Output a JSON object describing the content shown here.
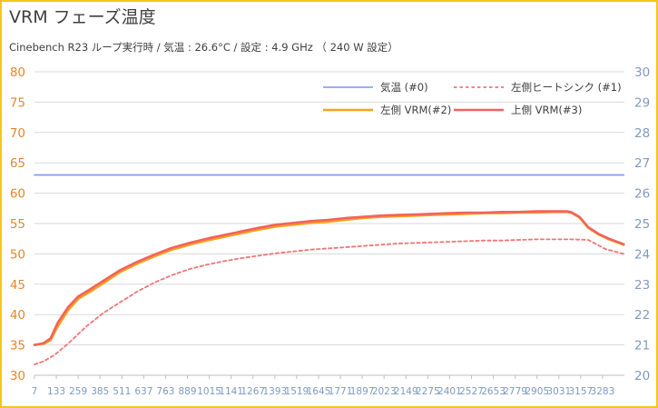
{
  "chart_data": {
    "type": "line",
    "title": "VRM フェーズ温度",
    "subtitle": "Cinebench R23 ループ実行時 / 気温 : 26.6°C / 設定 : 4.9 GHz （ 240 W 設定）",
    "xlabel": "",
    "ylabel": "",
    "y2label": "",
    "xlim": [
      7,
      3409
    ],
    "x_ticks": [
      7,
      133,
      259,
      385,
      511,
      637,
      763,
      889,
      1015,
      1141,
      1267,
      1393,
      1519,
      1645,
      1771,
      1897,
      2023,
      2149,
      2275,
      2401,
      2527,
      2653,
      2779,
      2905,
      3031,
      3157,
      3283
    ],
    "ylim": [
      30,
      80
    ],
    "y_ticks": [
      30,
      35,
      40,
      45,
      50,
      55,
      60,
      65,
      70,
      75,
      80
    ],
    "y2lim": [
      20,
      30
    ],
    "y2_ticks": [
      20,
      21,
      22,
      23,
      24,
      25,
      26,
      27,
      28,
      29,
      30
    ],
    "grid": "horizontal",
    "legend": "top-right",
    "colors": {
      "left_axis": "#e8862a",
      "right_axis": "#7f9bc0",
      "grid": "#d9d9d9",
      "axis": "#bfbfbf"
    },
    "series": [
      {
        "name": "気温 (#0)",
        "axis": "right",
        "color": "#7b95e6",
        "dash": "solid",
        "width": 1.6,
        "x": [
          7,
          40,
          50,
          60,
          80,
          110,
          160,
          250,
          320,
          350,
          400,
          480,
          510,
          560,
          640,
          760,
          850,
          950,
          1050,
          1150,
          1180,
          1200,
          1240,
          1270,
          1290,
          1320,
          1400,
          1480,
          1560,
          1620,
          1660,
          1700,
          1740,
          1770,
          1800,
          1840,
          1900,
          2000,
          2100,
          2200,
          2250,
          2300,
          2350,
          2400,
          2500,
          2600,
          2700,
          2800,
          2900,
          3000,
          3050,
          3100,
          3150,
          3200,
          3240,
          3280,
          3340,
          3380,
          3405
        ],
        "values": [
          26.6,
          26.6,
          26.6,
          26.6,
          26.6,
          26.6,
          26.6,
          26.6,
          26.6,
          26.6,
          26.6,
          26.6,
          26.6,
          26.6,
          26.6,
          26.6,
          26.6,
          26.6,
          26.6,
          26.6,
          26.6,
          26.6,
          26.6,
          26.6,
          26.6,
          26.6,
          26.6,
          26.6,
          26.6,
          26.6,
          26.6,
          26.6,
          26.6,
          26.6,
          26.6,
          26.6,
          26.6,
          26.6,
          26.6,
          26.6,
          26.6,
          26.6,
          26.6,
          26.6,
          26.6,
          26.6,
          26.6,
          26.6,
          26.6,
          26.6,
          26.6,
          26.6,
          26.6,
          26.6,
          26.6,
          26.6,
          26.6,
          26.6,
          26.6
        ]
      },
      {
        "name": "左側ヒートシンク (#1)",
        "axis": "left",
        "color": "#f07676",
        "dash": "dashed",
        "width": 1.8,
        "x": [
          7,
          60,
          120,
          200,
          300,
          400,
          500,
          600,
          700,
          800,
          900,
          1000,
          1100,
          1200,
          1300,
          1400,
          1500,
          1600,
          1700,
          1800,
          1900,
          2000,
          2100,
          2200,
          2300,
          2400,
          2500,
          2600,
          2700,
          2800,
          2900,
          3000,
          3100,
          3200,
          3300,
          3405
        ],
        "values": [
          31.8,
          32.3,
          33.3,
          35.2,
          37.9,
          40.2,
          42,
          43.8,
          45.3,
          46.5,
          47.5,
          48.2,
          48.8,
          49.3,
          49.7,
          50.1,
          50.4,
          50.7,
          50.9,
          51.1,
          51.3,
          51.5,
          51.7,
          51.8,
          51.9,
          52,
          52.1,
          52.2,
          52.2,
          52.3,
          52.4,
          52.4,
          52.4,
          52.3,
          50.8,
          50
        ]
      },
      {
        "name": "左側 VRM(#2)",
        "axis": "left",
        "color": "#f5a21c",
        "dash": "solid",
        "width": 2.6,
        "x": [
          7,
          60,
          100,
          140,
          200,
          260,
          330,
          400,
          500,
          600,
          700,
          800,
          900,
          1000,
          1100,
          1200,
          1300,
          1400,
          1500,
          1600,
          1700,
          1800,
          1900,
          2000,
          2100,
          2200,
          2300,
          2400,
          2500,
          2600,
          2700,
          2800,
          2900,
          3000,
          3050,
          3080,
          3100,
          3150,
          3200,
          3260,
          3320,
          3405
        ],
        "values": [
          35,
          35.2,
          35.8,
          38,
          40.7,
          42.6,
          43.8,
          45.1,
          47,
          48.4,
          49.6,
          50.7,
          51.5,
          52.2,
          52.8,
          53.4,
          54,
          54.5,
          54.8,
          55.1,
          55.3,
          55.6,
          55.9,
          56.1,
          56.2,
          56.3,
          56.4,
          56.5,
          56.6,
          56.7,
          56.7,
          56.8,
          56.8,
          56.9,
          56.9,
          56.9,
          56.8,
          56,
          54.3,
          53.2,
          52.4,
          51.5
        ]
      },
      {
        "name": "上側 VRM(#3)",
        "axis": "left",
        "color": "#f4625e",
        "dash": "solid",
        "width": 2.6,
        "x": [
          7,
          60,
          100,
          140,
          200,
          260,
          330,
          400,
          500,
          600,
          700,
          800,
          900,
          1000,
          1100,
          1200,
          1300,
          1400,
          1500,
          1600,
          1700,
          1800,
          1900,
          2000,
          2100,
          2200,
          2300,
          2400,
          2500,
          2600,
          2700,
          2800,
          2900,
          3000,
          3050,
          3080,
          3100,
          3150,
          3200,
          3260,
          3320,
          3405
        ],
        "values": [
          35,
          35.3,
          36.1,
          38.6,
          41.2,
          43,
          44.2,
          45.5,
          47.3,
          48.7,
          49.9,
          51,
          51.8,
          52.5,
          53.1,
          53.7,
          54.3,
          54.8,
          55.1,
          55.4,
          55.6,
          55.9,
          56.1,
          56.3,
          56.4,
          56.5,
          56.6,
          56.7,
          56.8,
          56.8,
          56.9,
          56.9,
          57,
          57,
          57,
          57,
          56.9,
          56.1,
          54.4,
          53.3,
          52.5,
          51.6
        ]
      }
    ]
  }
}
